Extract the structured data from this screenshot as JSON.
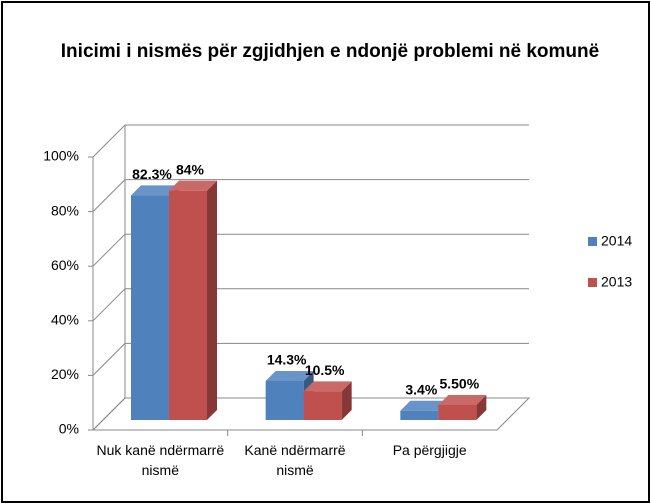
{
  "chart_data": {
    "type": "bar3d",
    "title": "Inicimi i nismës për zgjidhjen e ndonjë problemi në komunë",
    "categories": [
      "Nuk kanë ndërmarrë nismë",
      "Kanë ndërmarrë nismë",
      "Pa përgjigje"
    ],
    "series": [
      {
        "name": "2014",
        "color": "#4f81bd",
        "values": [
          82.3,
          14.3,
          3.4
        ],
        "value_labels": [
          "82.3%",
          "14.3%",
          "3.4%"
        ]
      },
      {
        "name": "2013",
        "color": "#c0504d",
        "values": [
          84,
          10.5,
          5.5
        ],
        "value_labels": [
          "84%",
          "10.5%",
          "5.50%"
        ]
      }
    ],
    "ylim": [
      0,
      100
    ],
    "yticks": [
      {
        "value": 0,
        "label": "0%"
      },
      {
        "value": 20,
        "label": "20%"
      },
      {
        "value": 40,
        "label": "40%"
      },
      {
        "value": 60,
        "label": "60%"
      },
      {
        "value": 80,
        "label": "80%"
      },
      {
        "value": 100,
        "label": "100%"
      }
    ],
    "grid": true,
    "legend": "right"
  }
}
